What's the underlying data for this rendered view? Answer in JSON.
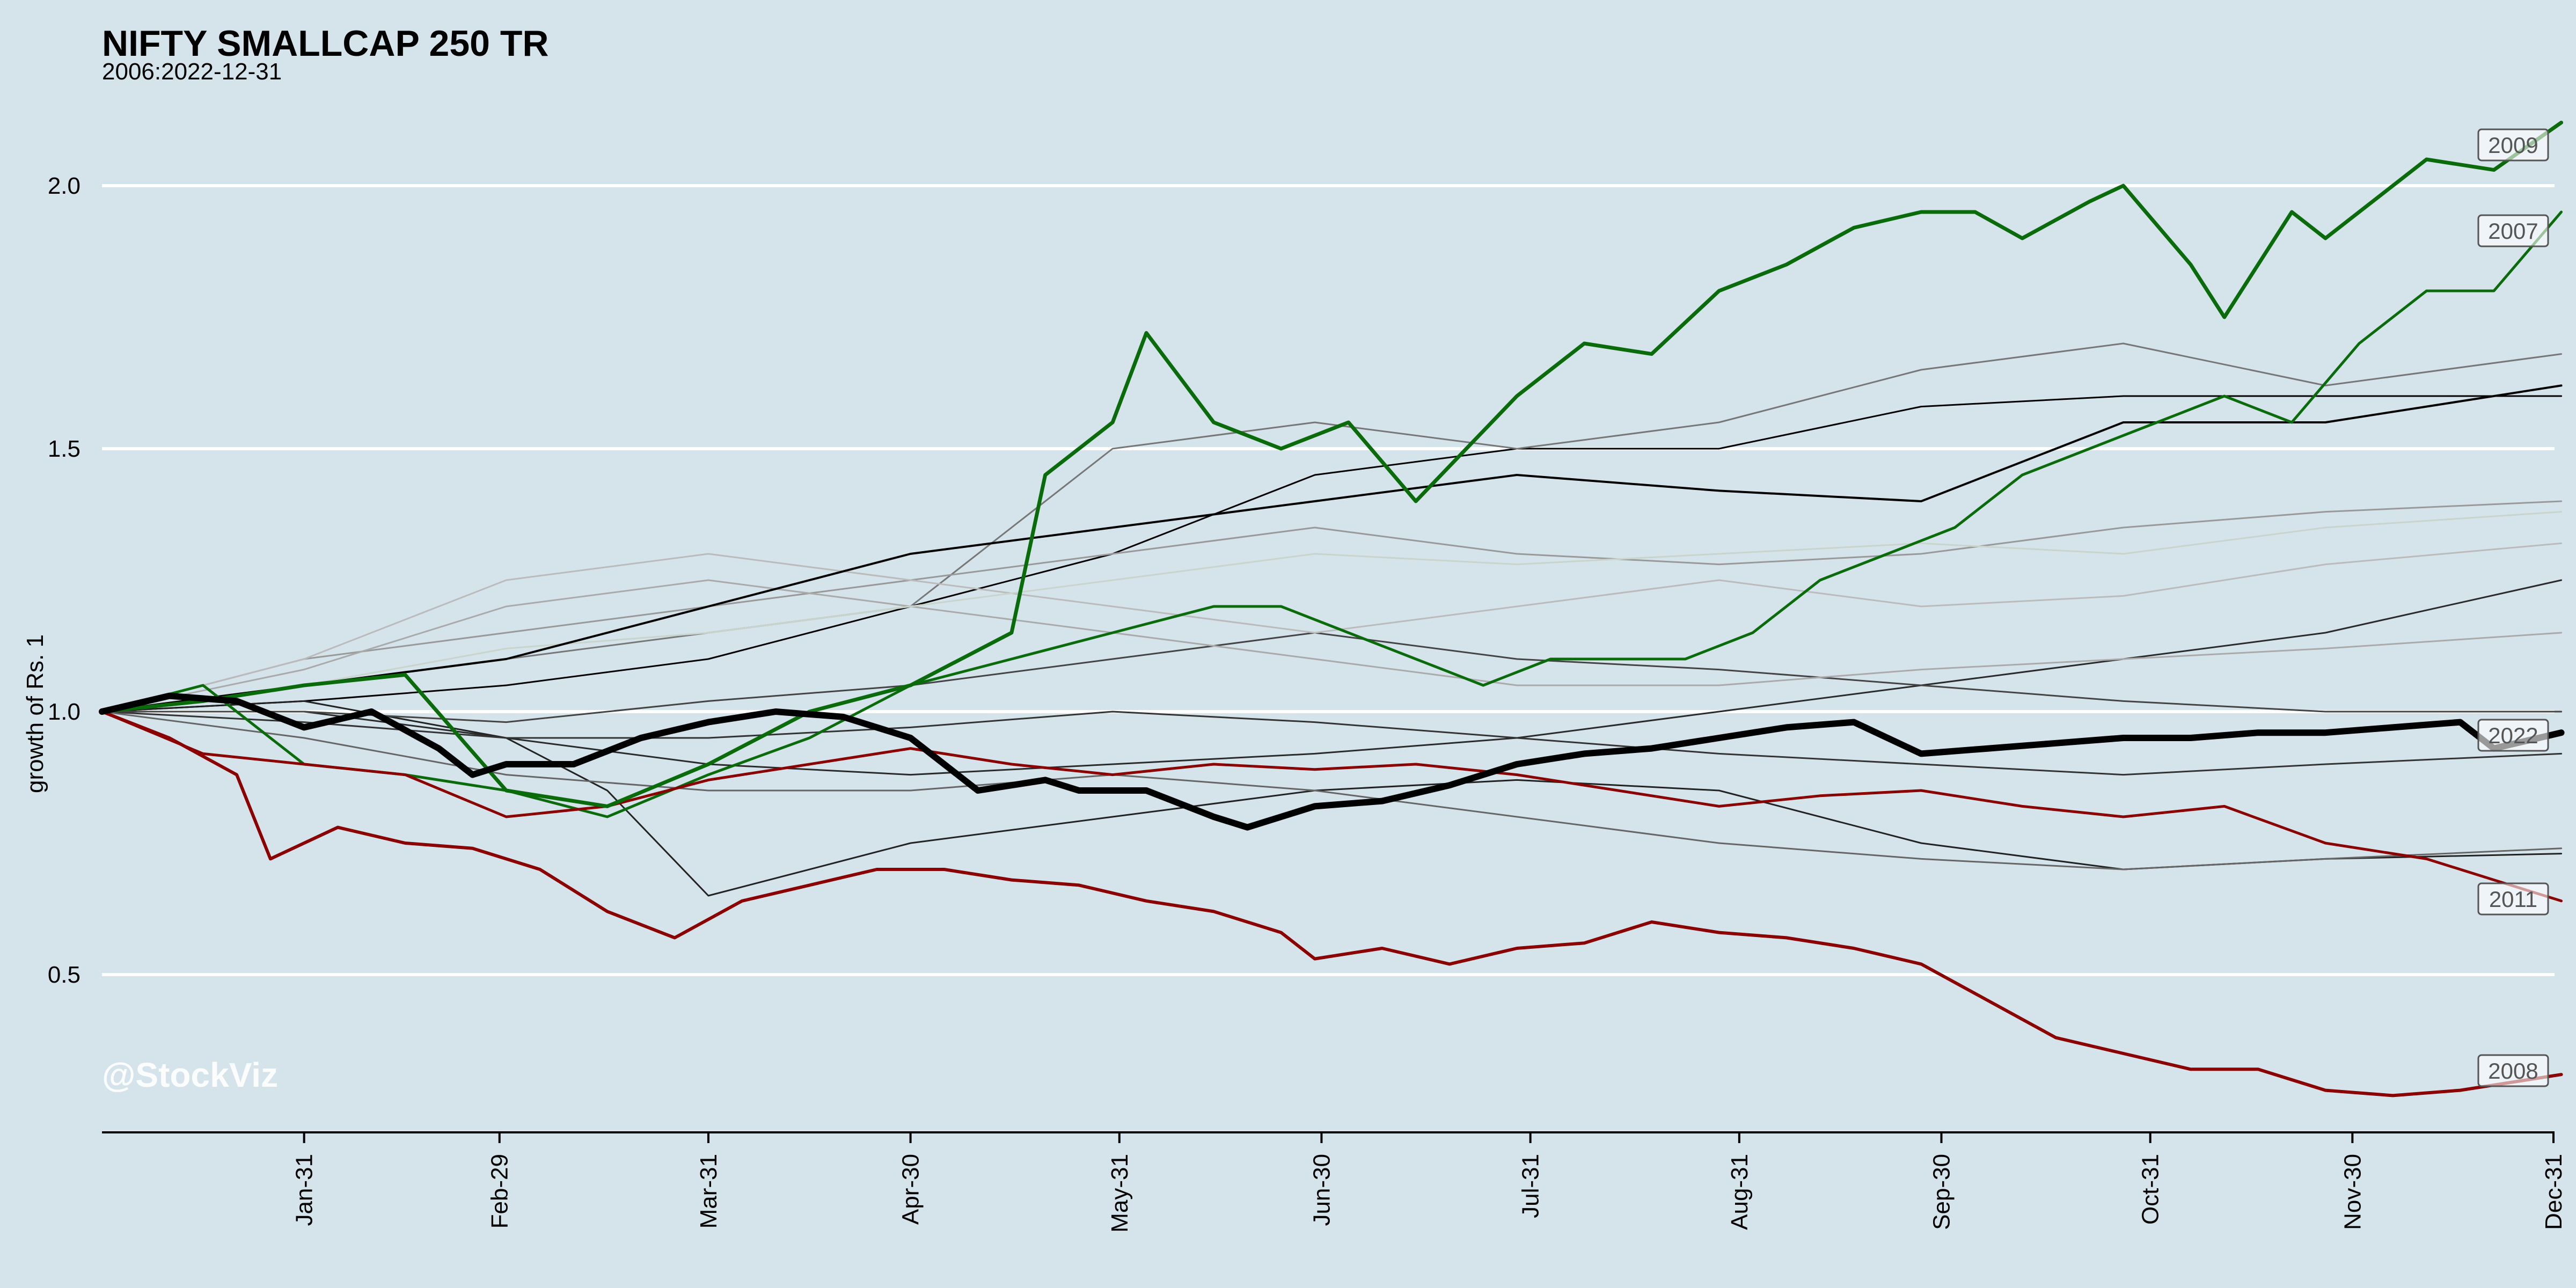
{
  "chart_data": {
    "type": "line",
    "title": "NIFTY SMALLCAP 250 TR",
    "subtitle": "2006:2022-12-31",
    "ylabel": "growth of Rs. 1",
    "xlabel": "",
    "watermark": "@StockViz",
    "ylim": [
      0.2,
      2.2
    ],
    "xlim": [
      0,
      364
    ],
    "grid": true,
    "legend": "none",
    "y_ticks": [
      {
        "value": 0.5,
        "label": "0.5"
      },
      {
        "value": 1.0,
        "label": "1.0"
      },
      {
        "value": 1.5,
        "label": "1.5"
      },
      {
        "value": 2.0,
        "label": "2.0"
      }
    ],
    "x_ticks": [
      {
        "value": 30,
        "label": "Jan-31"
      },
      {
        "value": 59,
        "label": "Feb-29"
      },
      {
        "value": 90,
        "label": "Mar-31"
      },
      {
        "value": 120,
        "label": "Apr-30"
      },
      {
        "value": 151,
        "label": "May-31"
      },
      {
        "value": 181,
        "label": "Jun-30"
      },
      {
        "value": 212,
        "label": "Jul-31"
      },
      {
        "value": 243,
        "label": "Aug-31"
      },
      {
        "value": 273,
        "label": "Sep-30"
      },
      {
        "value": 304,
        "label": "Oct-31"
      },
      {
        "value": 334,
        "label": "Nov-30"
      },
      {
        "value": 365,
        "label": "Dec-31"
      }
    ],
    "series": [
      {
        "name": "2009",
        "color": "#0a6b0a",
        "width": 7,
        "labeled": true,
        "x": [
          0,
          15,
          30,
          45,
          60,
          75,
          90,
          105,
          120,
          135,
          140,
          150,
          155,
          165,
          175,
          185,
          195,
          210,
          220,
          230,
          240,
          250,
          260,
          270,
          278,
          285,
          295,
          300,
          310,
          315,
          325,
          330,
          335,
          345,
          355,
          365
        ],
        "y": [
          1.0,
          1.02,
          1.05,
          1.07,
          0.85,
          0.82,
          0.9,
          1.0,
          1.05,
          1.15,
          1.45,
          1.55,
          1.72,
          1.55,
          1.5,
          1.55,
          1.4,
          1.6,
          1.7,
          1.68,
          1.8,
          1.85,
          1.92,
          1.95,
          1.95,
          1.9,
          1.97,
          2.0,
          1.85,
          1.75,
          1.95,
          1.9,
          1.95,
          2.05,
          2.03,
          2.12
        ]
      },
      {
        "name": "2007",
        "color": "#0a6b0a",
        "width": 5,
        "labeled": true,
        "x": [
          0,
          15,
          30,
          45,
          60,
          75,
          90,
          105,
          120,
          135,
          150,
          165,
          175,
          185,
          195,
          205,
          215,
          225,
          235,
          245,
          255,
          265,
          275,
          285,
          295,
          305,
          315,
          325,
          335,
          345,
          355,
          365
        ],
        "y": [
          1.0,
          1.05,
          0.9,
          0.88,
          0.85,
          0.8,
          0.88,
          0.95,
          1.05,
          1.1,
          1.15,
          1.2,
          1.2,
          1.15,
          1.1,
          1.05,
          1.1,
          1.1,
          1.1,
          1.15,
          1.25,
          1.3,
          1.35,
          1.45,
          1.5,
          1.55,
          1.6,
          1.55,
          1.7,
          1.8,
          1.8,
          1.95
        ]
      },
      {
        "name": "2008",
        "color": "#8b0000",
        "width": 6,
        "labeled": true,
        "x": [
          0,
          10,
          20,
          25,
          35,
          45,
          55,
          65,
          75,
          85,
          95,
          105,
          115,
          125,
          135,
          145,
          155,
          165,
          175,
          180,
          190,
          200,
          210,
          220,
          230,
          240,
          250,
          260,
          270,
          280,
          290,
          300,
          310,
          320,
          330,
          340,
          350,
          365
        ],
        "y": [
          1.0,
          0.95,
          0.88,
          0.72,
          0.78,
          0.75,
          0.74,
          0.7,
          0.62,
          0.57,
          0.64,
          0.67,
          0.7,
          0.7,
          0.68,
          0.67,
          0.64,
          0.62,
          0.58,
          0.53,
          0.55,
          0.52,
          0.55,
          0.56,
          0.6,
          0.58,
          0.57,
          0.55,
          0.52,
          0.45,
          0.38,
          0.35,
          0.32,
          0.32,
          0.28,
          0.27,
          0.28,
          0.31
        ]
      },
      {
        "name": "2011",
        "color": "#8b0000",
        "width": 5,
        "labeled": true,
        "x": [
          0,
          15,
          30,
          45,
          60,
          75,
          90,
          105,
          120,
          135,
          150,
          165,
          180,
          195,
          210,
          225,
          240,
          255,
          270,
          285,
          300,
          315,
          330,
          345,
          355,
          365
        ],
        "y": [
          1.0,
          0.92,
          0.9,
          0.88,
          0.8,
          0.82,
          0.87,
          0.9,
          0.93,
          0.9,
          0.88,
          0.9,
          0.89,
          0.9,
          0.88,
          0.85,
          0.82,
          0.84,
          0.85,
          0.82,
          0.8,
          0.82,
          0.75,
          0.72,
          0.68,
          0.64
        ]
      },
      {
        "name": "2022",
        "color": "#000000",
        "width": 12,
        "labeled": true,
        "x": [
          0,
          10,
          20,
          30,
          40,
          50,
          55,
          60,
          70,
          80,
          90,
          100,
          110,
          120,
          130,
          140,
          145,
          155,
          165,
          170,
          180,
          190,
          200,
          210,
          220,
          230,
          240,
          250,
          260,
          270,
          280,
          290,
          300,
          310,
          320,
          330,
          340,
          350,
          355,
          365
        ],
        "y": [
          1.0,
          1.03,
          1.02,
          0.97,
          1.0,
          0.93,
          0.88,
          0.9,
          0.9,
          0.95,
          0.98,
          1.0,
          0.99,
          0.95,
          0.85,
          0.87,
          0.85,
          0.85,
          0.8,
          0.78,
          0.82,
          0.83,
          0.86,
          0.9,
          0.92,
          0.93,
          0.95,
          0.97,
          0.98,
          0.92,
          0.93,
          0.94,
          0.95,
          0.95,
          0.96,
          0.96,
          0.97,
          0.98,
          0.93,
          0.96
        ]
      },
      {
        "color": "#000000",
        "width": 4,
        "labeled": false,
        "x": [
          0,
          30,
          60,
          90,
          120,
          150,
          180,
          210,
          240,
          270,
          300,
          330,
          365
        ],
        "y": [
          1.0,
          1.05,
          1.1,
          1.2,
          1.3,
          1.35,
          1.4,
          1.45,
          1.42,
          1.4,
          1.55,
          1.55,
          1.62
        ]
      },
      {
        "color": "#000000",
        "width": 3,
        "labeled": false,
        "x": [
          0,
          30,
          60,
          90,
          120,
          150,
          180,
          210,
          240,
          270,
          300,
          330,
          365
        ],
        "y": [
          1.0,
          1.02,
          1.05,
          1.1,
          1.2,
          1.3,
          1.45,
          1.5,
          1.5,
          1.58,
          1.6,
          1.6,
          1.6
        ]
      },
      {
        "color": "#222222",
        "width": 3,
        "labeled": false,
        "x": [
          0,
          30,
          60,
          75,
          90,
          120,
          150,
          180,
          210,
          240,
          270,
          300,
          330,
          365
        ],
        "y": [
          1.0,
          1.02,
          0.95,
          0.85,
          0.65,
          0.75,
          0.8,
          0.85,
          0.87,
          0.85,
          0.75,
          0.7,
          0.72,
          0.73
        ]
      },
      {
        "color": "#2a2a2a",
        "width": 3,
        "labeled": false,
        "x": [
          0,
          30,
          60,
          90,
          120,
          150,
          180,
          210,
          240,
          270,
          300,
          330,
          365
        ],
        "y": [
          1.0,
          1.0,
          0.95,
          0.9,
          0.88,
          0.9,
          0.92,
          0.95,
          1.0,
          1.05,
          1.1,
          1.15,
          1.25
        ]
      },
      {
        "color": "#333333",
        "width": 3,
        "labeled": false,
        "x": [
          0,
          30,
          60,
          90,
          120,
          150,
          180,
          210,
          240,
          270,
          300,
          330,
          365
        ],
        "y": [
          1.0,
          0.98,
          0.95,
          0.95,
          0.97,
          1.0,
          0.98,
          0.95,
          0.92,
          0.9,
          0.88,
          0.9,
          0.92
        ]
      },
      {
        "color": "#444444",
        "width": 3,
        "labeled": false,
        "x": [
          0,
          30,
          60,
          90,
          120,
          150,
          180,
          210,
          240,
          270,
          300,
          330,
          365
        ],
        "y": [
          1.0,
          1.0,
          0.98,
          1.02,
          1.05,
          1.1,
          1.15,
          1.1,
          1.08,
          1.05,
          1.02,
          1.0,
          1.0
        ]
      },
      {
        "color": "#666666",
        "width": 3,
        "labeled": false,
        "x": [
          0,
          30,
          60,
          90,
          120,
          150,
          180,
          210,
          240,
          270,
          300,
          330,
          365
        ],
        "y": [
          1.0,
          0.95,
          0.88,
          0.85,
          0.85,
          0.88,
          0.85,
          0.8,
          0.75,
          0.72,
          0.7,
          0.72,
          0.74
        ]
      },
      {
        "color": "#777777",
        "width": 3,
        "labeled": false,
        "x": [
          0,
          30,
          60,
          90,
          120,
          150,
          180,
          210,
          240,
          270,
          300,
          330,
          365
        ],
        "y": [
          1.0,
          1.05,
          1.1,
          1.15,
          1.2,
          1.5,
          1.55,
          1.5,
          1.55,
          1.65,
          1.7,
          1.62,
          1.68
        ]
      },
      {
        "color": "#999999",
        "width": 3,
        "labeled": false,
        "x": [
          0,
          30,
          60,
          90,
          120,
          150,
          180,
          210,
          240,
          270,
          300,
          330,
          365
        ],
        "y": [
          1.0,
          1.1,
          1.15,
          1.2,
          1.25,
          1.3,
          1.35,
          1.3,
          1.28,
          1.3,
          1.35,
          1.38,
          1.4
        ]
      },
      {
        "color": "#aaaaaa",
        "width": 3,
        "labeled": false,
        "x": [
          0,
          30,
          60,
          90,
          120,
          150,
          180,
          210,
          240,
          270,
          300,
          330,
          365
        ],
        "y": [
          1.0,
          1.08,
          1.2,
          1.25,
          1.2,
          1.15,
          1.1,
          1.05,
          1.05,
          1.08,
          1.1,
          1.12,
          1.15
        ]
      },
      {
        "color": "#bbbbbb",
        "width": 3,
        "labeled": false,
        "x": [
          0,
          30,
          60,
          90,
          120,
          150,
          180,
          210,
          240,
          270,
          300,
          330,
          365
        ],
        "y": [
          1.0,
          1.1,
          1.25,
          1.3,
          1.25,
          1.2,
          1.15,
          1.2,
          1.25,
          1.2,
          1.22,
          1.28,
          1.32
        ]
      },
      {
        "color": "#c8d4cc",
        "width": 3,
        "labeled": false,
        "x": [
          0,
          30,
          60,
          90,
          120,
          150,
          180,
          210,
          240,
          270,
          300,
          330,
          365
        ],
        "y": [
          1.0,
          1.05,
          1.12,
          1.15,
          1.2,
          1.25,
          1.3,
          1.28,
          1.3,
          1.32,
          1.3,
          1.35,
          1.38
        ]
      }
    ]
  }
}
